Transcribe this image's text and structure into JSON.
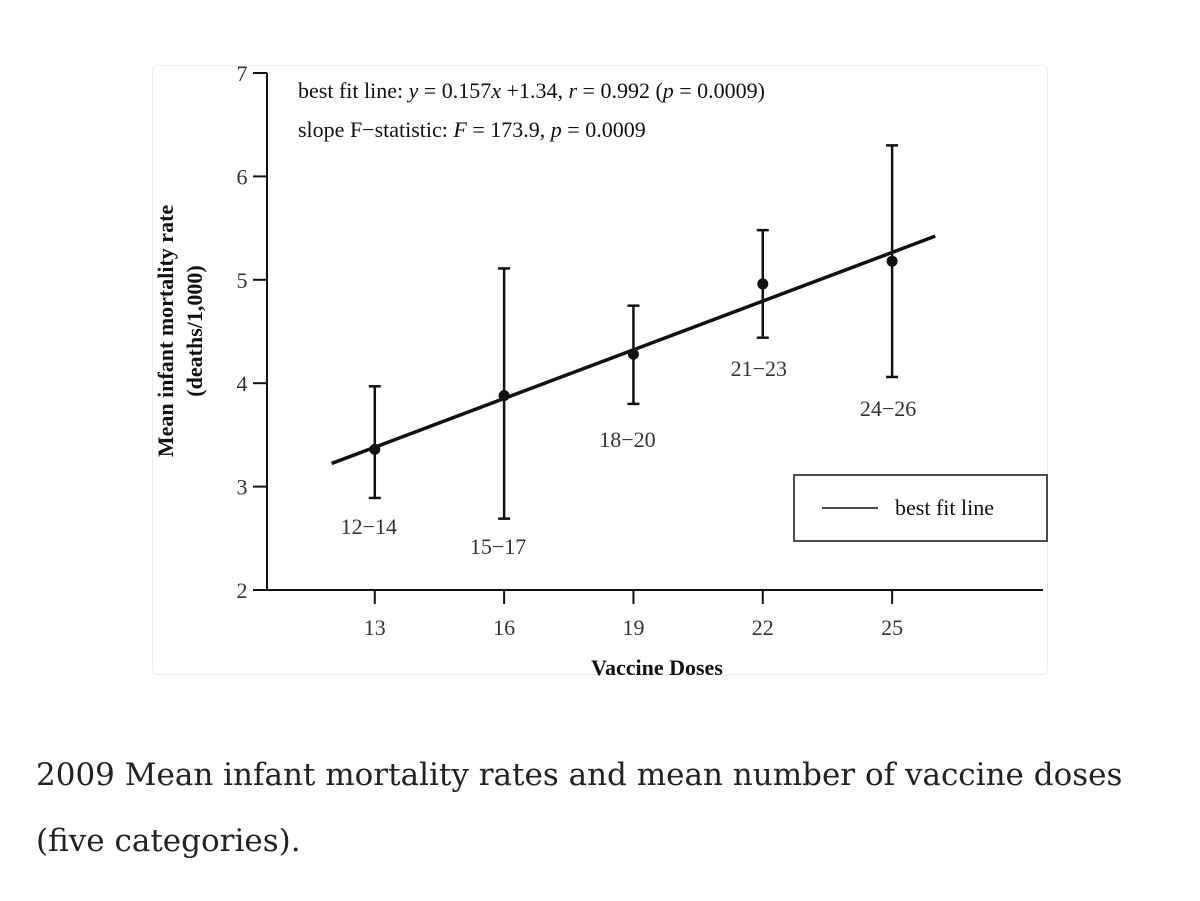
{
  "caption": "2009 Mean infant mortality rates and mean number of vaccine doses (five categories).",
  "colors": {
    "ink": "#111111",
    "text": "#222222",
    "frame": "#ececec"
  },
  "chart_data": {
    "type": "scatter",
    "title": "",
    "xlabel": "Vaccine Doses",
    "ylabel_line1": "Mean infant mortality rate",
    "ylabel_line2": "(deaths/1,000)",
    "xlim": [
      10.5,
      28.5
    ],
    "ylim": [
      2,
      7
    ],
    "x_ticks": [
      13,
      16,
      19,
      22,
      25
    ],
    "y_ticks": [
      2,
      3,
      4,
      5,
      6,
      7
    ],
    "points": [
      {
        "label": "12−14",
        "x": 13,
        "y": 3.36,
        "err_low": 2.89,
        "err_high": 3.97
      },
      {
        "label": "15−17",
        "x": 16,
        "y": 3.88,
        "err_low": 2.69,
        "err_high": 5.11
      },
      {
        "label": "18−20",
        "x": 19,
        "y": 4.28,
        "err_low": 3.8,
        "err_high": 4.75
      },
      {
        "label": "21−23",
        "x": 22,
        "y": 4.96,
        "err_low": 4.44,
        "err_high": 5.48
      },
      {
        "label": "24−26",
        "x": 25,
        "y": 5.18,
        "err_low": 4.06,
        "err_high": 6.3
      }
    ],
    "fit_line": {
      "slope": 0.157,
      "intercept": 1.34,
      "x_start": 12,
      "x_end": 26
    },
    "annotation_line1": {
      "prefix": "best fit line: ",
      "var_y": "y",
      "eq1": " = 0.157",
      "var_x": "x",
      "eq2": " +1.34, ",
      "var_r": "r",
      "eq3": " = 0.992 (",
      "var_p": "p",
      "eq4": " = 0.0009)"
    },
    "annotation_line2": {
      "prefix": "slope F−statistic: ",
      "var_f": "F",
      "eq1": " = 173.9, ",
      "var_p": "p",
      "eq2": " = 0.0009"
    },
    "legend": {
      "label": "best fit line",
      "position": "lower-right"
    }
  }
}
